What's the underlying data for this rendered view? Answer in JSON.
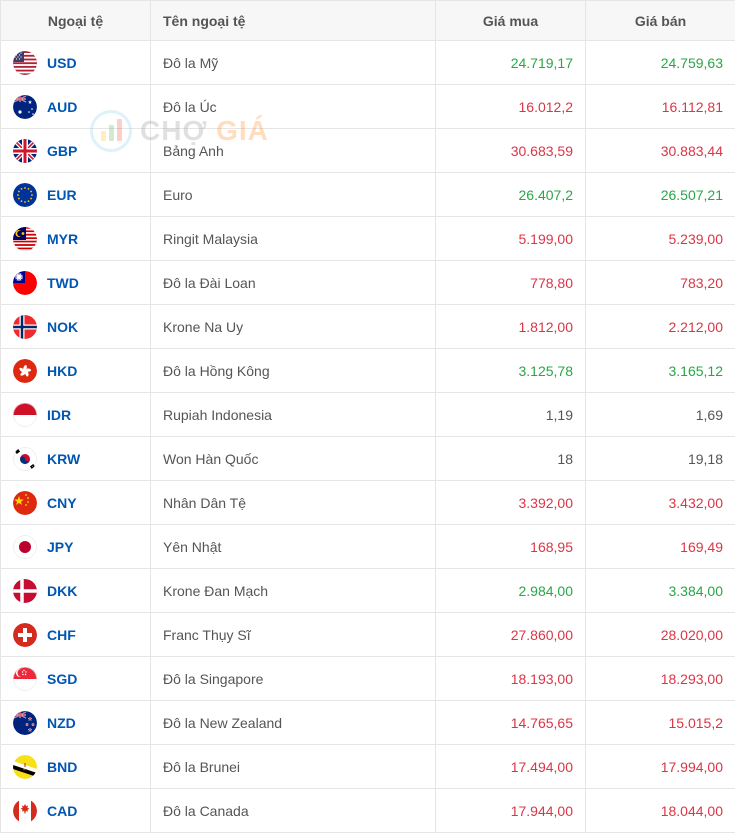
{
  "watermark": {
    "text1": "CHỢ",
    "text2": "GIÁ"
  },
  "headers": {
    "code": "Ngoại tệ",
    "name": "Tên ngoại tệ",
    "buy": "Giá mua",
    "sell": "Giá bán"
  },
  "colors": {
    "up": "#28a745",
    "down": "#dc3545",
    "neutral": "#555555",
    "link": "#0056b3",
    "border": "#e5e5e5",
    "header_bg": "#f7f7f7"
  },
  "rows": [
    {
      "code": "USD",
      "name": "Đô la Mỹ",
      "buy": "24.719,17",
      "buy_dir": "up",
      "sell": "24.759,63",
      "sell_dir": "up",
      "flag": "usd"
    },
    {
      "code": "AUD",
      "name": "Đô la Úc",
      "buy": "16.012,2",
      "buy_dir": "down",
      "sell": "16.112,81",
      "sell_dir": "down",
      "flag": "aud"
    },
    {
      "code": "GBP",
      "name": "Bảng Anh",
      "buy": "30.683,59",
      "buy_dir": "down",
      "sell": "30.883,44",
      "sell_dir": "down",
      "flag": "gbp"
    },
    {
      "code": "EUR",
      "name": "Euro",
      "buy": "26.407,2",
      "buy_dir": "up",
      "sell": "26.507,21",
      "sell_dir": "up",
      "flag": "eur"
    },
    {
      "code": "MYR",
      "name": "Ringit Malaysia",
      "buy": "5.199,00",
      "buy_dir": "down",
      "sell": "5.239,00",
      "sell_dir": "down",
      "flag": "myr"
    },
    {
      "code": "TWD",
      "name": "Đô la Đài Loan",
      "buy": "778,80",
      "buy_dir": "down",
      "sell": "783,20",
      "sell_dir": "down",
      "flag": "twd"
    },
    {
      "code": "NOK",
      "name": "Krone Na Uy",
      "buy": "1.812,00",
      "buy_dir": "down",
      "sell": "2.212,00",
      "sell_dir": "down",
      "flag": "nok"
    },
    {
      "code": "HKD",
      "name": "Đô la Hồng Kông",
      "buy": "3.125,78",
      "buy_dir": "up",
      "sell": "3.165,12",
      "sell_dir": "up",
      "flag": "hkd"
    },
    {
      "code": "IDR",
      "name": "Rupiah Indonesia",
      "buy": "1,19",
      "buy_dir": "neutral",
      "sell": "1,69",
      "sell_dir": "neutral",
      "flag": "idr"
    },
    {
      "code": "KRW",
      "name": "Won Hàn Quốc",
      "buy": "18",
      "buy_dir": "neutral",
      "sell": "19,18",
      "sell_dir": "neutral",
      "flag": "krw"
    },
    {
      "code": "CNY",
      "name": "Nhân Dân Tệ",
      "buy": "3.392,00",
      "buy_dir": "down",
      "sell": "3.432,00",
      "sell_dir": "down",
      "flag": "cny"
    },
    {
      "code": "JPY",
      "name": "Yên Nhật",
      "buy": "168,95",
      "buy_dir": "down",
      "sell": "169,49",
      "sell_dir": "down",
      "flag": "jpy"
    },
    {
      "code": "DKK",
      "name": "Krone Đan Mạch",
      "buy": "2.984,00",
      "buy_dir": "up",
      "sell": "3.384,00",
      "sell_dir": "up",
      "flag": "dkk"
    },
    {
      "code": "CHF",
      "name": "Franc Thụy Sĩ",
      "buy": "27.860,00",
      "buy_dir": "down",
      "sell": "28.020,00",
      "sell_dir": "down",
      "flag": "chf"
    },
    {
      "code": "SGD",
      "name": "Đô la Singapore",
      "buy": "18.193,00",
      "buy_dir": "down",
      "sell": "18.293,00",
      "sell_dir": "down",
      "flag": "sgd"
    },
    {
      "code": "NZD",
      "name": "Đô la New Zealand",
      "buy": "14.765,65",
      "buy_dir": "down",
      "sell": "15.015,2",
      "sell_dir": "down",
      "flag": "nzd"
    },
    {
      "code": "BND",
      "name": "Đô la Brunei",
      "buy": "17.494,00",
      "buy_dir": "down",
      "sell": "17.994,00",
      "sell_dir": "down",
      "flag": "bnd"
    },
    {
      "code": "CAD",
      "name": "Đô la Canada",
      "buy": "17.944,00",
      "buy_dir": "down",
      "sell": "18.044,00",
      "sell_dir": "down",
      "flag": "cad"
    }
  ]
}
